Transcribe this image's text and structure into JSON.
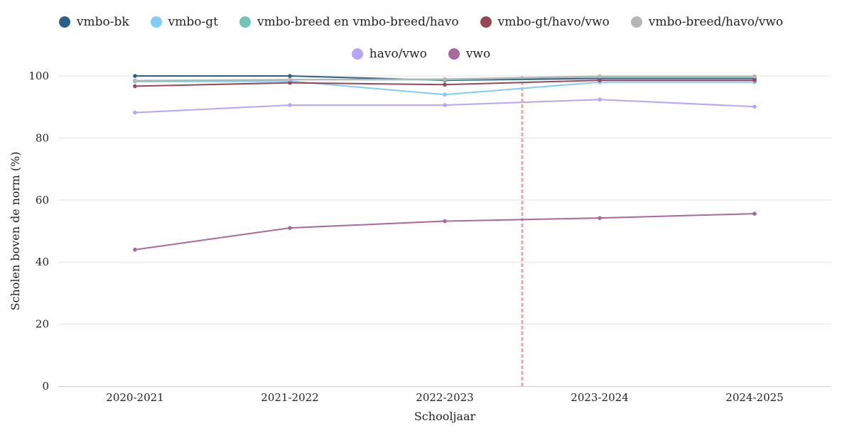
{
  "chart_data": {
    "type": "line",
    "xlabel": "Schooljaar",
    "ylabel": "Scholen boven de norm (%)",
    "categories": [
      "2020-2021",
      "2021-2022",
      "2022-2023",
      "2023-2024",
      "2024-2025"
    ],
    "ylim": [
      0,
      100
    ],
    "yticks": [
      0,
      20,
      40,
      60,
      80,
      100
    ],
    "grid": true,
    "legend_position": "top",
    "reference_line": {
      "x_between": [
        "2022-2023",
        "2023-2024"
      ],
      "x_fraction": 0.5,
      "style": "dashed",
      "color": "#f4a3a8"
    },
    "series": [
      {
        "name": "vmbo-bk",
        "color": "#2e5f86",
        "values": [
          100,
          100,
          98.6,
          99.2,
          99.2
        ]
      },
      {
        "name": "vmbo-gt",
        "color": "#7fcdf8",
        "values": [
          98.2,
          98.3,
          94.0,
          98.0,
          98.0
        ]
      },
      {
        "name": "vmbo-breed en vmbo-breed/havo",
        "color": "#72c5b8",
        "values": [
          98.4,
          98.8,
          98.8,
          99.8,
          99.8
        ]
      },
      {
        "name": "vmbo-gt/havo/vwo",
        "color": "#9a4558",
        "values": [
          96.7,
          97.8,
          97.2,
          98.6,
          98.6
        ]
      },
      {
        "name": "vmbo-breed/havo/vwo",
        "color": "#b4b6b5",
        "values": [
          98.5,
          98.8,
          99.0,
          99.9,
          99.9
        ]
      },
      {
        "name": "havo/vwo",
        "color": "#b7a5fb",
        "values": [
          88.2,
          90.6,
          90.6,
          92.4,
          90.1
        ]
      },
      {
        "name": "vwo",
        "color": "#a66a9e",
        "values": [
          44.0,
          51.0,
          53.2,
          54.2,
          55.6
        ]
      }
    ],
    "legend_rows": [
      [
        "vmbo-bk",
        "vmbo-gt",
        "vmbo-breed en vmbo-breed/havo",
        "vmbo-gt/havo/vwo",
        "vmbo-breed/havo/vwo"
      ],
      [
        "havo/vwo",
        "vwo"
      ]
    ]
  }
}
